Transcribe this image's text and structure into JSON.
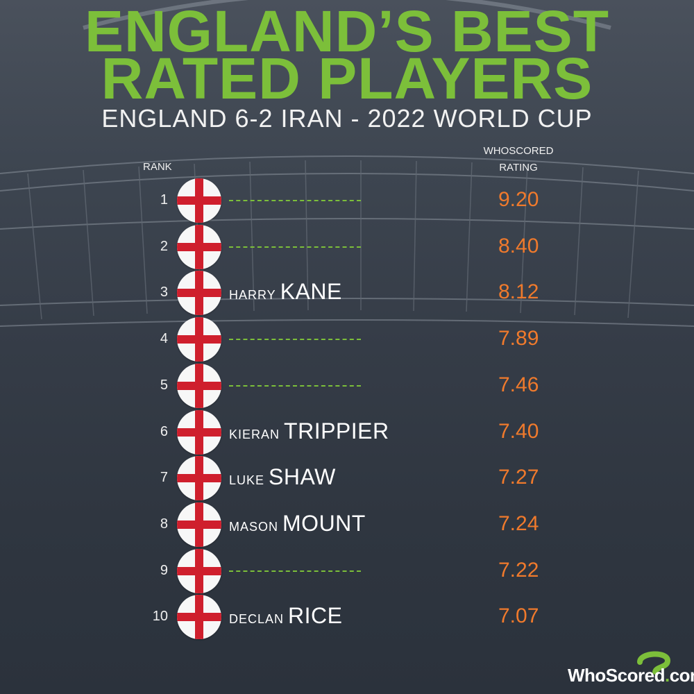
{
  "title": {
    "line1": "ENGLAND’S BEST",
    "line2": "RATED PLAYERS"
  },
  "subtitle": "ENGLAND 6-2 IRAN - 2022 WORLD CUP",
  "headers": {
    "rank": "RANK",
    "rating_line1": "WHOSCORED",
    "rating_line2": "RATING"
  },
  "colors": {
    "accent_green": "#7cbf3a",
    "rating_orange": "#f07a2c",
    "flag_red": "#cf1f2d"
  },
  "rows": [
    {
      "rank": "1",
      "first": "",
      "last": "",
      "rating": "9.20"
    },
    {
      "rank": "2",
      "first": "",
      "last": "",
      "rating": "8.40"
    },
    {
      "rank": "3",
      "first": "HARRY",
      "last": "KANE",
      "rating": "8.12"
    },
    {
      "rank": "4",
      "first": "",
      "last": "",
      "rating": "7.89"
    },
    {
      "rank": "5",
      "first": "",
      "last": "",
      "rating": "7.46"
    },
    {
      "rank": "6",
      "first": "KIERAN",
      "last": "TRIPPIER",
      "rating": "7.40"
    },
    {
      "rank": "7",
      "first": "LUKE",
      "last": "SHAW",
      "rating": "7.27"
    },
    {
      "rank": "8",
      "first": "MASON",
      "last": "MOUNT",
      "rating": "7.24"
    },
    {
      "rank": "9",
      "first": "",
      "last": "",
      "rating": "7.22"
    },
    {
      "rank": "10",
      "first": "DECLAN",
      "last": "RICE",
      "rating": "7.07"
    }
  ],
  "logo": {
    "name": "WhoScored",
    "dot": ".",
    "tld": "com",
    "icon": "question-mark-icon"
  }
}
